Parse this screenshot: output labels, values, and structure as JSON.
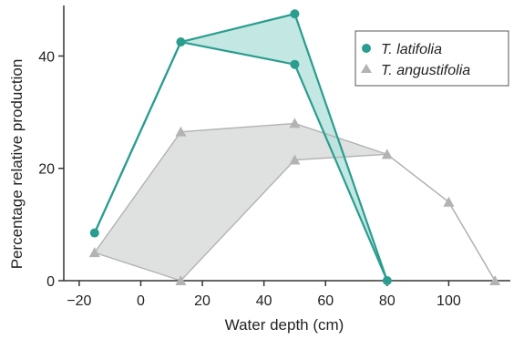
{
  "chart_data": {
    "type": "line",
    "title": "",
    "xlabel": "Water depth (cm)",
    "ylabel": "Percentage relative production",
    "xlim": [
      -25,
      120
    ],
    "ylim": [
      0,
      49
    ],
    "xticks": [
      -20,
      0,
      20,
      40,
      60,
      80,
      100
    ],
    "yticks": [
      0,
      20,
      40
    ],
    "grid": false,
    "legend": "top-right",
    "series": [
      {
        "name": "T. latifolia",
        "marker": "circle",
        "color": "#2a9d8f",
        "fill": "#b9e3dd",
        "upper": [
          {
            "x": -15,
            "y": 8.5
          },
          {
            "x": 13,
            "y": 42.5
          },
          {
            "x": 50,
            "y": 47.5
          },
          {
            "x": 80,
            "y": 0
          }
        ],
        "lower": [
          {
            "x": -15,
            "y": 8.5
          },
          {
            "x": 13,
            "y": 42.5
          },
          {
            "x": 50,
            "y": 38.5
          },
          {
            "x": 80,
            "y": 0
          }
        ]
      },
      {
        "name": "T. angustifolia",
        "marker": "triangle",
        "color": "#b3b3b3",
        "fill": "#d9dada",
        "upper": [
          {
            "x": -15,
            "y": 5
          },
          {
            "x": 13,
            "y": 26.5
          },
          {
            "x": 50,
            "y": 28
          },
          {
            "x": 80,
            "y": 22.5
          },
          {
            "x": 100,
            "y": 14
          },
          {
            "x": 115,
            "y": 0
          }
        ],
        "lower": [
          {
            "x": -15,
            "y": 5
          },
          {
            "x": 13,
            "y": 0
          },
          {
            "x": 50,
            "y": 21.5
          },
          {
            "x": 80,
            "y": 22.5
          },
          {
            "x": 100,
            "y": 14
          },
          {
            "x": 115,
            "y": 0
          }
        ]
      }
    ]
  }
}
